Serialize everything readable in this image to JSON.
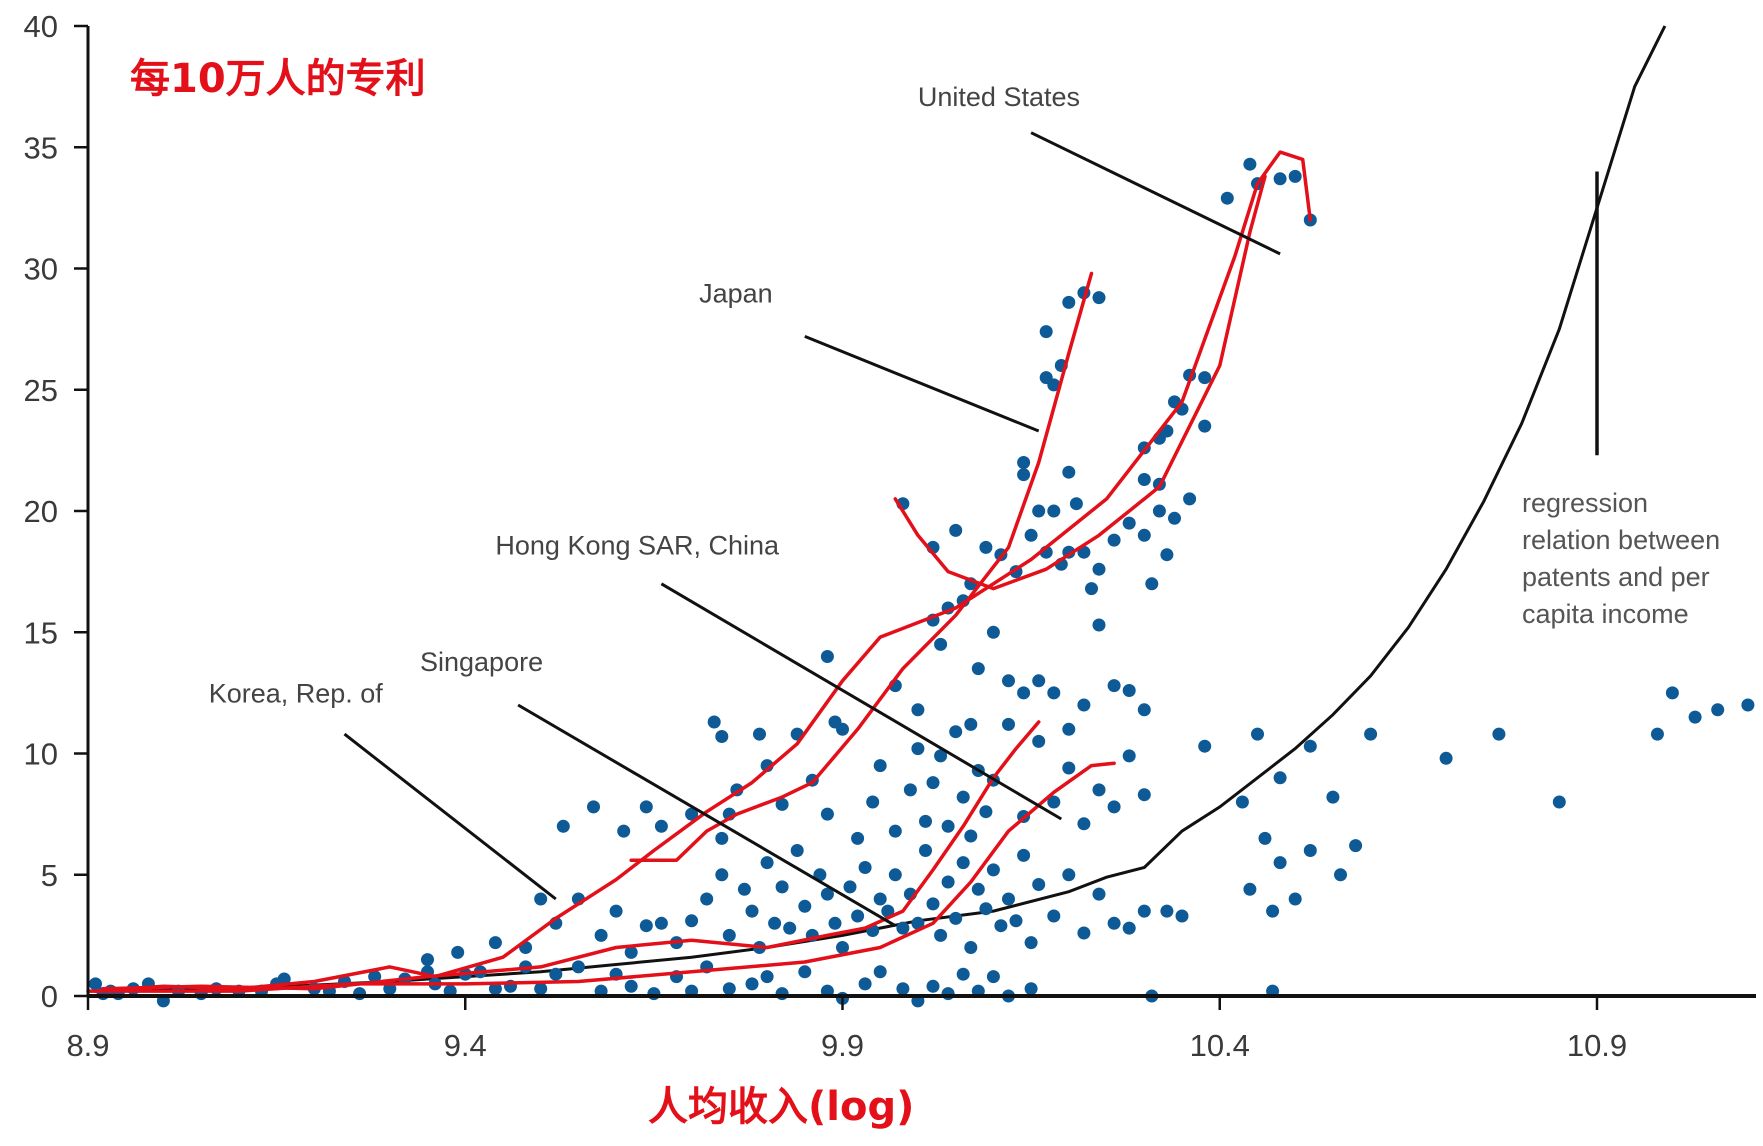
{
  "annotations": {
    "title": "每10万人的专利",
    "xlabel": "人均收入(log)",
    "regression_note": [
      "regression",
      "relation between",
      "patents and per",
      "capita income"
    ],
    "red_color": "#e3101a"
  },
  "chart_data": {
    "type": "scatter",
    "title": "",
    "xlabel": "",
    "ylabel": "",
    "xlim": [
      8.9,
      11.11
    ],
    "ylim": [
      0,
      40
    ],
    "xticks": [
      8.9,
      9.4,
      9.9,
      10.4,
      10.9
    ],
    "xtick_labels": [
      "8.9",
      "9.4",
      "9.9",
      "10.4",
      "10.9"
    ],
    "yticks": [
      0,
      5,
      10,
      15,
      20,
      25,
      30,
      35,
      40
    ],
    "ytick_labels": [
      "0",
      "5",
      "10",
      "15",
      "20",
      "25",
      "30",
      "35",
      "40"
    ],
    "grid": false,
    "dot_color": "#0d5a96",
    "curve_color": "#111111",
    "path_color": "#e3101a",
    "points": [
      [
        8.91,
        0.5
      ],
      [
        8.92,
        0.1
      ],
      [
        8.93,
        0.2
      ],
      [
        8.94,
        0.1
      ],
      [
        8.96,
        0.3
      ],
      [
        8.98,
        0.5
      ],
      [
        9.0,
        -0.2
      ],
      [
        9.02,
        0.2
      ],
      [
        9.05,
        0.1
      ],
      [
        9.07,
        0.3
      ],
      [
        9.1,
        0.2
      ],
      [
        9.13,
        0.2
      ],
      [
        9.15,
        0.5
      ],
      [
        9.16,
        0.7
      ],
      [
        9.2,
        0.3
      ],
      [
        9.22,
        0.2
      ],
      [
        9.24,
        0.6
      ],
      [
        9.26,
        0.1
      ],
      [
        9.28,
        0.8
      ],
      [
        9.3,
        0.3
      ],
      [
        9.32,
        0.7
      ],
      [
        9.35,
        1.0
      ],
      [
        9.36,
        0.5
      ],
      [
        9.38,
        0.2
      ],
      [
        9.4,
        0.9
      ],
      [
        9.42,
        1.0
      ],
      [
        9.44,
        0.3
      ],
      [
        9.46,
        0.4
      ],
      [
        9.48,
        1.2
      ],
      [
        9.5,
        0.3
      ],
      [
        9.52,
        0.9
      ],
      [
        9.55,
        1.2
      ],
      [
        9.58,
        0.2
      ],
      [
        9.6,
        0.9
      ],
      [
        9.62,
        0.4
      ],
      [
        9.65,
        0.1
      ],
      [
        9.68,
        0.8
      ],
      [
        9.7,
        0.2
      ],
      [
        9.72,
        1.2
      ],
      [
        9.75,
        0.3
      ],
      [
        9.78,
        0.5
      ],
      [
        9.8,
        0.8
      ],
      [
        9.82,
        0.1
      ],
      [
        9.85,
        1.0
      ],
      [
        9.88,
        0.2
      ],
      [
        9.9,
        -0.1
      ],
      [
        9.93,
        0.5
      ],
      [
        9.95,
        1.0
      ],
      [
        9.98,
        0.3
      ],
      [
        10.0,
        -0.2
      ],
      [
        10.02,
        0.4
      ],
      [
        10.04,
        0.1
      ],
      [
        10.06,
        0.9
      ],
      [
        10.08,
        0.2
      ],
      [
        10.1,
        0.8
      ],
      [
        10.12,
        0.0
      ],
      [
        10.15,
        0.3
      ],
      [
        9.35,
        1.5
      ],
      [
        9.39,
        1.8
      ],
      [
        9.44,
        2.2
      ],
      [
        9.48,
        2.0
      ],
      [
        9.5,
        4.0
      ],
      [
        9.52,
        3.0
      ],
      [
        9.55,
        4.0
      ],
      [
        9.58,
        2.5
      ],
      [
        9.6,
        3.5
      ],
      [
        9.62,
        1.8
      ],
      [
        9.64,
        2.9
      ],
      [
        9.66,
        3.0
      ],
      [
        9.68,
        2.2
      ],
      [
        9.7,
        3.1
      ],
      [
        9.72,
        4.0
      ],
      [
        9.74,
        5.0
      ],
      [
        9.75,
        2.5
      ],
      [
        9.77,
        4.4
      ],
      [
        9.78,
        3.5
      ],
      [
        9.79,
        2.0
      ],
      [
        9.8,
        5.5
      ],
      [
        9.81,
        3.0
      ],
      [
        9.82,
        4.5
      ],
      [
        9.83,
        2.8
      ],
      [
        9.84,
        6.0
      ],
      [
        9.85,
        3.7
      ],
      [
        9.86,
        2.5
      ],
      [
        9.87,
        5.0
      ],
      [
        9.88,
        4.2
      ],
      [
        9.89,
        3.0
      ],
      [
        9.9,
        2.0
      ],
      [
        9.91,
        4.5
      ],
      [
        9.92,
        3.3
      ],
      [
        9.93,
        5.3
      ],
      [
        9.94,
        2.7
      ],
      [
        9.95,
        4.0
      ],
      [
        9.96,
        3.5
      ],
      [
        9.97,
        5.0
      ],
      [
        9.98,
        2.8
      ],
      [
        9.99,
        4.2
      ],
      [
        10.0,
        3.0
      ],
      [
        10.01,
        6.0
      ],
      [
        10.02,
        3.8
      ],
      [
        10.03,
        2.5
      ],
      [
        10.04,
        4.7
      ],
      [
        10.05,
        3.2
      ],
      [
        10.06,
        5.5
      ],
      [
        10.07,
        2.0
      ],
      [
        10.08,
        4.4
      ],
      [
        10.09,
        3.6
      ],
      [
        10.1,
        5.2
      ],
      [
        10.11,
        2.9
      ],
      [
        10.12,
        4.0
      ],
      [
        10.13,
        3.1
      ],
      [
        10.14,
        5.8
      ],
      [
        10.15,
        2.2
      ],
      [
        10.16,
        4.6
      ],
      [
        10.18,
        3.3
      ],
      [
        10.2,
        5.0
      ],
      [
        10.22,
        2.6
      ],
      [
        10.24,
        4.2
      ],
      [
        10.26,
        3.0
      ],
      [
        10.28,
        2.8
      ],
      [
        10.3,
        3.5
      ],
      [
        9.53,
        7.0
      ],
      [
        9.57,
        7.8
      ],
      [
        9.61,
        6.8
      ],
      [
        9.64,
        7.8
      ],
      [
        9.66,
        7.0
      ],
      [
        9.7,
        7.5
      ],
      [
        9.74,
        6.5
      ],
      [
        9.75,
        7.5
      ],
      [
        9.76,
        8.5
      ],
      [
        9.79,
        10.8
      ],
      [
        9.8,
        9.5
      ],
      [
        9.82,
        7.9
      ],
      [
        9.84,
        10.8
      ],
      [
        9.86,
        8.9
      ],
      [
        9.88,
        7.5
      ],
      [
        9.9,
        11.0
      ],
      [
        9.92,
        6.5
      ],
      [
        9.94,
        8.0
      ],
      [
        9.95,
        9.5
      ],
      [
        9.97,
        6.8
      ],
      [
        9.99,
        8.5
      ],
      [
        10.0,
        10.2
      ],
      [
        10.01,
        7.2
      ],
      [
        10.02,
        8.8
      ],
      [
        10.03,
        9.9
      ],
      [
        10.04,
        7.0
      ],
      [
        10.05,
        10.9
      ],
      [
        10.06,
        8.2
      ],
      [
        10.07,
        6.6
      ],
      [
        10.08,
        9.3
      ],
      [
        10.09,
        7.6
      ],
      [
        10.1,
        8.9
      ],
      [
        10.12,
        11.2
      ],
      [
        10.14,
        7.4
      ],
      [
        10.16,
        10.5
      ],
      [
        10.18,
        8.0
      ],
      [
        10.2,
        9.4
      ],
      [
        10.22,
        7.1
      ],
      [
        10.24,
        8.5
      ],
      [
        10.26,
        7.8
      ],
      [
        10.28,
        9.9
      ],
      [
        10.3,
        8.3
      ],
      [
        9.73,
        11.3
      ],
      [
        9.74,
        10.7
      ],
      [
        9.89,
        11.3
      ],
      [
        10.07,
        11.2
      ],
      [
        9.98,
        20.3
      ],
      [
        10.02,
        18.5
      ],
      [
        10.05,
        19.2
      ],
      [
        10.07,
        17.0
      ],
      [
        10.09,
        18.5
      ],
      [
        10.11,
        18.2
      ],
      [
        10.13,
        17.5
      ],
      [
        10.15,
        19.0
      ],
      [
        10.17,
        18.3
      ],
      [
        10.18,
        20.0
      ],
      [
        10.19,
        17.8
      ],
      [
        10.2,
        18.3
      ],
      [
        10.21,
        20.3
      ],
      [
        10.22,
        18.3
      ],
      [
        10.23,
        16.8
      ],
      [
        10.24,
        17.6
      ],
      [
        10.26,
        18.8
      ],
      [
        10.28,
        19.5
      ],
      [
        10.3,
        19.0
      ],
      [
        10.32,
        20.0
      ],
      [
        10.34,
        19.7
      ],
      [
        10.36,
        20.5
      ],
      [
        10.33,
        18.2
      ],
      [
        10.31,
        17.0
      ],
      [
        10.02,
        15.5
      ],
      [
        10.04,
        16.0
      ],
      [
        10.06,
        16.3
      ],
      [
        10.03,
        14.5
      ],
      [
        10.08,
        13.5
      ],
      [
        10.1,
        15.0
      ],
      [
        10.12,
        13.0
      ],
      [
        10.14,
        12.5
      ],
      [
        10.16,
        13.0
      ],
      [
        10.18,
        12.5
      ],
      [
        10.2,
        11.0
      ],
      [
        10.22,
        12.0
      ],
      [
        10.24,
        15.3
      ],
      [
        10.26,
        12.8
      ],
      [
        10.28,
        12.6
      ],
      [
        10.3,
        11.8
      ],
      [
        9.88,
        14.0
      ],
      [
        9.97,
        12.8
      ],
      [
        10.0,
        11.8
      ],
      [
        10.14,
        22.0
      ],
      [
        10.17,
        25.5
      ],
      [
        10.18,
        25.2
      ],
      [
        10.19,
        26.0
      ],
      [
        10.17,
        27.4
      ],
      [
        10.2,
        28.6
      ],
      [
        10.22,
        29.0
      ],
      [
        10.24,
        28.8
      ],
      [
        10.3,
        22.6
      ],
      [
        10.32,
        23.0
      ],
      [
        10.33,
        23.3
      ],
      [
        10.34,
        24.5
      ],
      [
        10.35,
        24.2
      ],
      [
        10.36,
        25.6
      ],
      [
        10.38,
        25.5
      ],
      [
        10.38,
        23.5
      ],
      [
        10.41,
        32.9
      ],
      [
        10.44,
        34.3
      ],
      [
        10.45,
        33.5
      ],
      [
        10.48,
        33.7
      ],
      [
        10.5,
        33.8
      ],
      [
        10.52,
        32.0
      ],
      [
        10.14,
        21.5
      ],
      [
        10.16,
        20.0
      ],
      [
        10.2,
        21.6
      ],
      [
        10.3,
        21.3
      ],
      [
        10.32,
        21.1
      ],
      [
        10.38,
        10.3
      ],
      [
        10.43,
        8.0
      ],
      [
        10.46,
        6.5
      ],
      [
        10.48,
        5.5
      ],
      [
        10.5,
        4.0
      ],
      [
        10.52,
        6.0
      ],
      [
        10.45,
        10.8
      ],
      [
        10.48,
        9.0
      ],
      [
        10.52,
        10.3
      ],
      [
        10.55,
        8.2
      ],
      [
        10.58,
        6.2
      ],
      [
        10.6,
        10.8
      ],
      [
        10.56,
        5.0
      ],
      [
        10.47,
        3.5
      ],
      [
        10.44,
        4.4
      ],
      [
        10.47,
        0.2
      ],
      [
        10.33,
        3.5
      ],
      [
        10.35,
        3.3
      ],
      [
        10.31,
        0.0
      ],
      [
        10.7,
        9.8
      ],
      [
        10.77,
        10.8
      ],
      [
        10.85,
        8.0
      ],
      [
        10.98,
        10.8
      ],
      [
        11.0,
        12.5
      ],
      [
        11.03,
        11.5
      ],
      [
        11.06,
        11.8
      ],
      [
        11.1,
        12.0
      ]
    ],
    "regression_curve": [
      [
        8.9,
        0.2
      ],
      [
        9.0,
        0.25
      ],
      [
        9.1,
        0.3
      ],
      [
        9.2,
        0.45
      ],
      [
        9.3,
        0.6
      ],
      [
        9.4,
        0.8
      ],
      [
        9.5,
        1.0
      ],
      [
        9.6,
        1.3
      ],
      [
        9.7,
        1.6
      ],
      [
        9.8,
        2.0
      ],
      [
        9.9,
        2.5
      ],
      [
        10.0,
        3.1
      ],
      [
        10.1,
        3.5
      ],
      [
        10.2,
        4.3
      ],
      [
        10.25,
        4.9
      ],
      [
        10.3,
        5.3
      ],
      [
        10.35,
        6.8
      ],
      [
        10.4,
        7.8
      ],
      [
        10.45,
        9.0
      ],
      [
        10.5,
        10.2
      ],
      [
        10.55,
        11.6
      ],
      [
        10.6,
        13.2
      ],
      [
        10.65,
        15.2
      ],
      [
        10.7,
        17.6
      ],
      [
        10.75,
        20.4
      ],
      [
        10.8,
        23.6
      ],
      [
        10.85,
        27.5
      ],
      [
        10.9,
        32.5
      ],
      [
        10.95,
        37.5
      ],
      [
        10.99,
        40.0
      ]
    ],
    "red_paths": [
      [
        [
          8.91,
          0.2
        ],
        [
          9.0,
          0.4
        ],
        [
          9.1,
          0.3
        ],
        [
          9.2,
          0.6
        ],
        [
          9.3,
          1.2
        ],
        [
          9.36,
          0.8
        ],
        [
          9.45,
          1.6
        ],
        [
          9.52,
          3.2
        ],
        [
          9.6,
          4.8
        ],
        [
          9.65,
          6.0
        ],
        [
          9.72,
          7.6
        ],
        [
          9.78,
          8.8
        ],
        [
          9.84,
          10.4
        ],
        [
          9.9,
          13.0
        ],
        [
          9.95,
          14.8
        ],
        [
          10.05,
          16.0
        ],
        [
          10.15,
          18.0
        ],
        [
          10.25,
          20.5
        ],
        [
          10.35,
          24.5
        ],
        [
          10.42,
          30.5
        ],
        [
          10.45,
          33.5
        ],
        [
          10.48,
          34.8
        ],
        [
          10.51,
          34.5
        ],
        [
          10.52,
          32.0
        ]
      ],
      [
        [
          9.62,
          5.6
        ],
        [
          9.68,
          5.6
        ],
        [
          9.72,
          6.8
        ],
        [
          9.76,
          7.5
        ],
        [
          9.82,
          8.2
        ],
        [
          9.86,
          8.8
        ],
        [
          9.92,
          11.0
        ],
        [
          9.98,
          13.5
        ],
        [
          10.05,
          15.7
        ],
        [
          10.12,
          18.5
        ],
        [
          10.16,
          22.0
        ],
        [
          10.2,
          26.5
        ],
        [
          10.23,
          29.8
        ]
      ],
      [
        [
          8.92,
          0.3
        ],
        [
          9.05,
          0.4
        ],
        [
          9.2,
          0.3
        ],
        [
          9.35,
          0.8
        ],
        [
          9.5,
          1.2
        ],
        [
          9.6,
          2.0
        ],
        [
          9.7,
          2.3
        ],
        [
          9.8,
          2.0
        ],
        [
          9.88,
          2.5
        ],
        [
          9.93,
          2.8
        ],
        [
          9.98,
          3.5
        ],
        [
          10.02,
          5.2
        ],
        [
          10.06,
          7.0
        ],
        [
          10.1,
          9.0
        ],
        [
          10.13,
          10.2
        ],
        [
          10.16,
          11.3
        ]
      ],
      [
        [
          8.9,
          0.2
        ],
        [
          9.1,
          0.2
        ],
        [
          9.25,
          0.5
        ],
        [
          9.4,
          0.5
        ],
        [
          9.55,
          0.6
        ],
        [
          9.7,
          1.0
        ],
        [
          9.85,
          1.4
        ],
        [
          9.95,
          2.0
        ],
        [
          10.02,
          3.0
        ],
        [
          10.07,
          4.7
        ],
        [
          10.12,
          6.8
        ],
        [
          10.18,
          8.4
        ],
        [
          10.23,
          9.5
        ],
        [
          10.26,
          9.6
        ]
      ],
      [
        [
          9.97,
          20.5
        ],
        [
          10.0,
          19.0
        ],
        [
          10.04,
          17.5
        ],
        [
          10.1,
          16.8
        ],
        [
          10.17,
          17.6
        ],
        [
          10.24,
          19.0
        ],
        [
          10.32,
          21.0
        ],
        [
          10.4,
          26.0
        ],
        [
          10.44,
          31.5
        ],
        [
          10.46,
          33.8
        ]
      ]
    ],
    "labels": [
      {
        "text": "United States",
        "x": 10.0,
        "y": 36.7,
        "line": [
          [
            10.15,
            35.6
          ],
          [
            10.48,
            30.6
          ]
        ]
      },
      {
        "text": "Japan",
        "x": 9.71,
        "y": 28.6,
        "line": [
          [
            9.85,
            27.2
          ],
          [
            10.16,
            23.3
          ]
        ]
      },
      {
        "text": "Hong Kong SAR, China",
        "x": 9.44,
        "y": 18.2,
        "line": [
          [
            9.66,
            17.0
          ],
          [
            10.19,
            7.3
          ]
        ]
      },
      {
        "text": "Singapore",
        "x": 9.34,
        "y": 13.4,
        "line": [
          [
            9.47,
            12.0
          ],
          [
            9.97,
            2.9
          ]
        ]
      },
      {
        "text": "Korea, Rep. of",
        "x": 9.06,
        "y": 12.1,
        "line": [
          [
            9.24,
            10.8
          ],
          [
            9.52,
            4.0
          ]
        ]
      }
    ],
    "regression_marker": [
      [
        10.9,
        34.0
      ],
      [
        10.9,
        22.3
      ]
    ]
  }
}
